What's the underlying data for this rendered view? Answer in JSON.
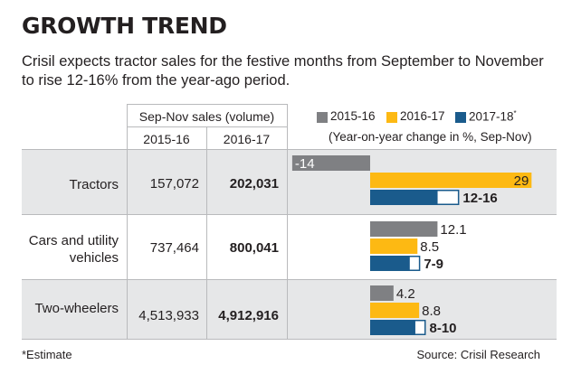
{
  "title": "GROWTH TREND",
  "subtitle": "Crisil expects tractor sales for the festive months from September to November to rise 12-16% from the year-ago period.",
  "table": {
    "group_header": "Sep-Nov sales (volume)",
    "col1_header": "2015-16",
    "col2_header": "2016-17",
    "rows": [
      {
        "label": "Tractors",
        "v2015": "157,072",
        "v2016": "202,031"
      },
      {
        "label": "Cars and  utility vehicles",
        "v2015": "737,464",
        "v2016": "800,041"
      },
      {
        "label": "Two-wheelers",
        "v2015": "4,513,933",
        "v2016": "4,912,916"
      }
    ]
  },
  "legend": {
    "items": [
      {
        "label": "2015-16",
        "color": "#7f8083"
      },
      {
        "label": "2016-17",
        "color": "#fdb913"
      },
      {
        "label": "2017-18",
        "sup": "*",
        "color": "#1a5b8c"
      }
    ],
    "note": "(Year-on-year change in %, Sep-Nov)"
  },
  "footnote": "*Estimate",
  "source": "Source: Crisil Research",
  "chart_data": {
    "type": "bar",
    "orientation": "horizontal",
    "categories": [
      "Tractors",
      "Cars and  utility vehicles",
      "Two-wheelers"
    ],
    "series": [
      {
        "name": "2015-16",
        "color": "#7f8083",
        "values": [
          -14,
          12.1,
          4.2
        ],
        "labels": [
          "-14",
          "12.1",
          "4.2"
        ]
      },
      {
        "name": "2016-17",
        "color": "#fdb913",
        "values": [
          29,
          8.5,
          8.8
        ],
        "labels": [
          "29",
          "8.5",
          "8.8"
        ]
      },
      {
        "name": "2017-18*",
        "color": "#1a5b8c",
        "ranges": [
          [
            12,
            16
          ],
          [
            7,
            9
          ],
          [
            8,
            10
          ]
        ],
        "labels": [
          "12-16",
          "7-9",
          "8-10"
        ]
      }
    ],
    "ylabel": "Year-on-year change in %, Sep-Nov"
  }
}
